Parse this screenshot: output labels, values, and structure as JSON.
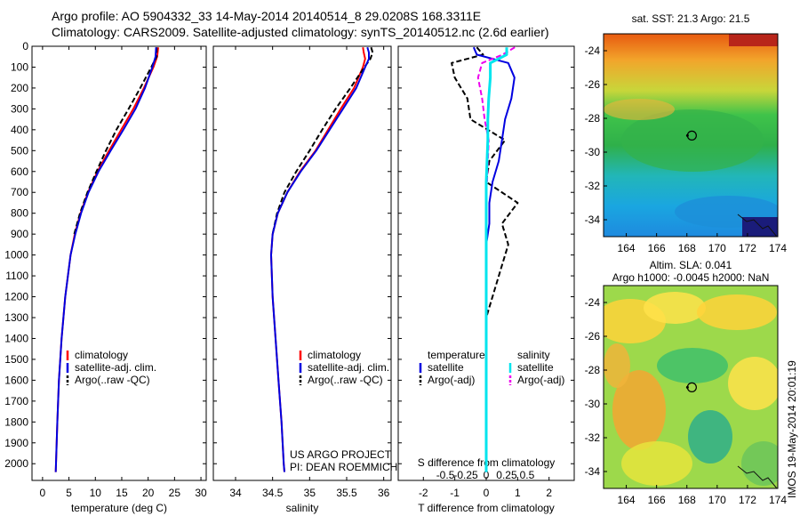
{
  "header": {
    "line1": "Argo profile: AO 5904332_33 14-May-2014 20140514_8 29.0208S 168.3311E",
    "line2": "Climatology: CARS2009. Satellite-adjusted climatology: synTS_20140512.nc (2.6d earlier)"
  },
  "colors": {
    "climatology": "#ff0000",
    "satellite": "#0000e0",
    "argo": "#000000",
    "sal_satellite": "#00e5ee",
    "sal_argo": "#ee00ee"
  },
  "chart_data": [
    {
      "type": "line",
      "id": "temperature",
      "xlabel": "temperature (deg C)",
      "ylabel": "",
      "xlim": [
        -2,
        31
      ],
      "ylim": [
        2080,
        0
      ],
      "xticks": [
        "0",
        "5",
        "10",
        "15",
        "20",
        "25",
        "30"
      ],
      "yticks": [
        "0",
        "100",
        "200",
        "300",
        "400",
        "500",
        "600",
        "700",
        "800",
        "900",
        "1000",
        "1100",
        "1200",
        "1300",
        "1400",
        "1500",
        "1600",
        "1700",
        "1800",
        "1900",
        "2000"
      ],
      "legend": [
        "climatology",
        "satellite-adj. clim.",
        "Argo(..raw -QC)"
      ],
      "depth": [
        5,
        50,
        100,
        200,
        300,
        400,
        500,
        600,
        700,
        800,
        900,
        1000,
        1200,
        1400,
        1600,
        1800,
        2000,
        2040
      ],
      "series": [
        {
          "name": "climatology",
          "values": [
            21.9,
            21.7,
            21.0,
            19.2,
            17.2,
            14.9,
            12.6,
            10.4,
            8.6,
            7.2,
            6.1,
            5.3,
            4.3,
            3.6,
            3.1,
            2.8,
            2.55,
            2.5
          ]
        },
        {
          "name": "satellite-adj. clim.",
          "values": [
            21.5,
            21.4,
            20.8,
            19.4,
            17.6,
            15.3,
            12.9,
            10.6,
            8.7,
            7.3,
            6.2,
            5.3,
            4.3,
            3.6,
            3.1,
            2.8,
            2.55,
            2.5
          ]
        },
        {
          "name": "Argo(..raw -QC)",
          "values": [
            21.6,
            21.6,
            20.6,
            18.5,
            16.3,
            14.0,
            12.0,
            10.2,
            8.5,
            7.1,
            6.0,
            null,
            null,
            null,
            null,
            null,
            null,
            null
          ]
        }
      ]
    },
    {
      "type": "line",
      "id": "salinity",
      "xlabel": "salinity",
      "xlim": [
        33.7,
        36.1
      ],
      "ylim": [
        2080,
        0
      ],
      "xticks": [
        "34",
        "34.5",
        "35",
        "35.5",
        "36"
      ],
      "legend": [
        "climatology",
        "satellite-adj. clim.",
        "Argo(..raw -QC)"
      ],
      "annotation": [
        "US ARGO PROJECT",
        "PI: DEAN ROEMMICH"
      ],
      "depth": [
        5,
        30,
        60,
        100,
        200,
        300,
        400,
        500,
        600,
        700,
        800,
        900,
        1000,
        1200,
        1400,
        1600,
        1800,
        2000,
        2040
      ],
      "series": [
        {
          "name": "climatology",
          "values": [
            35.72,
            35.73,
            35.75,
            35.72,
            35.6,
            35.42,
            35.25,
            35.08,
            34.87,
            34.7,
            34.57,
            34.5,
            34.48,
            34.5,
            34.54,
            34.58,
            34.62,
            34.65,
            34.66
          ]
        },
        {
          "name": "satellite-adj. clim.",
          "values": [
            35.78,
            35.8,
            35.8,
            35.75,
            35.63,
            35.45,
            35.27,
            35.09,
            34.88,
            34.7,
            34.57,
            34.5,
            34.48,
            34.5,
            34.54,
            34.58,
            34.62,
            34.65,
            34.66
          ]
        },
        {
          "name": "Argo(..raw -QC)",
          "values": [
            35.83,
            35.85,
            35.82,
            35.74,
            35.55,
            35.35,
            35.17,
            35.0,
            34.82,
            34.66,
            34.56,
            34.5,
            null,
            null,
            null,
            null,
            null,
            null,
            null
          ]
        }
      ]
    },
    {
      "type": "line",
      "id": "difference",
      "xlabel": "T difference from climatology",
      "xlabel_top": "S difference from climatology",
      "xlim": [
        -2.8,
        2.8
      ],
      "ylim": [
        2080,
        0
      ],
      "xticks_T": [
        "-2",
        "-1",
        "0",
        "1",
        "2"
      ],
      "xticks_S": [
        "-0.5",
        "-0.25",
        "0",
        "0.25",
        "0.5"
      ],
      "legend": {
        "temperature_title": "temperature",
        "salinity_title": "salinity",
        "satellite": "satellite",
        "argo": "Argo(-adj)"
      },
      "depth": [
        5,
        40,
        80,
        150,
        250,
        350,
        450,
        550,
        650,
        750,
        850,
        950,
        1050,
        1300,
        1600,
        2000,
        2040
      ],
      "series": [
        {
          "name": "T satellite",
          "values": [
            -0.4,
            -0.3,
            0.7,
            0.9,
            0.8,
            0.6,
            0.5,
            0.4,
            0.2,
            0.1,
            0.1,
            0.0,
            0.0,
            0.0,
            0.0,
            0.0,
            0.0
          ]
        },
        {
          "name": "T Argo(-adj)",
          "values": [
            -0.3,
            -0.1,
            -1.1,
            -1.0,
            -0.6,
            -0.5,
            0.6,
            0.1,
            0.0,
            1.0,
            0.5,
            0.7,
            0.5,
            0.0,
            0.0,
            null,
            null
          ]
        },
        {
          "name": "S satellite",
          "values": [
            0.25,
            0.25,
            0.05,
            0.05,
            0.03,
            0.02,
            0.02,
            0.01,
            0.0,
            0.0,
            0.0,
            0.0,
            0.0,
            0.0,
            0.0,
            0.0,
            0.0
          ]
        },
        {
          "name": "S Argo(-adj)",
          "values": [
            0.35,
            0.2,
            -0.05,
            -0.1,
            -0.05,
            -0.02,
            0.03,
            0.02,
            0.01,
            null,
            null,
            null,
            null,
            null,
            null,
            null,
            null
          ]
        }
      ]
    },
    {
      "type": "heatmap",
      "id": "sst-map",
      "title": "sat. SST: 21.3  Argo: 21.5",
      "xlim": [
        162.5,
        174
      ],
      "ylim": [
        -35,
        -23
      ],
      "xticks": [
        "164",
        "166",
        "168",
        "170",
        "172",
        "174"
      ],
      "yticks": [
        "-24",
        "-26",
        "-28",
        "-30",
        "-32",
        "-34"
      ],
      "argo_position": {
        "lon": 168.33,
        "lat": -29.02
      }
    },
    {
      "type": "heatmap",
      "id": "sla-map",
      "title": [
        "Altim. SLA: 0.041",
        "Argo h1000: -0.0045 h2000: NaN"
      ],
      "xlim": [
        162.5,
        174
      ],
      "ylim": [
        -35,
        -23
      ],
      "xticks": [
        "164",
        "166",
        "168",
        "170",
        "172",
        "174"
      ],
      "yticks": [
        "-24",
        "-26",
        "-28",
        "-30",
        "-32",
        "-34"
      ],
      "argo_position": {
        "lon": 168.33,
        "lat": -29.02
      }
    }
  ],
  "credit": "IMOS 19-May-2014 20:01:19"
}
